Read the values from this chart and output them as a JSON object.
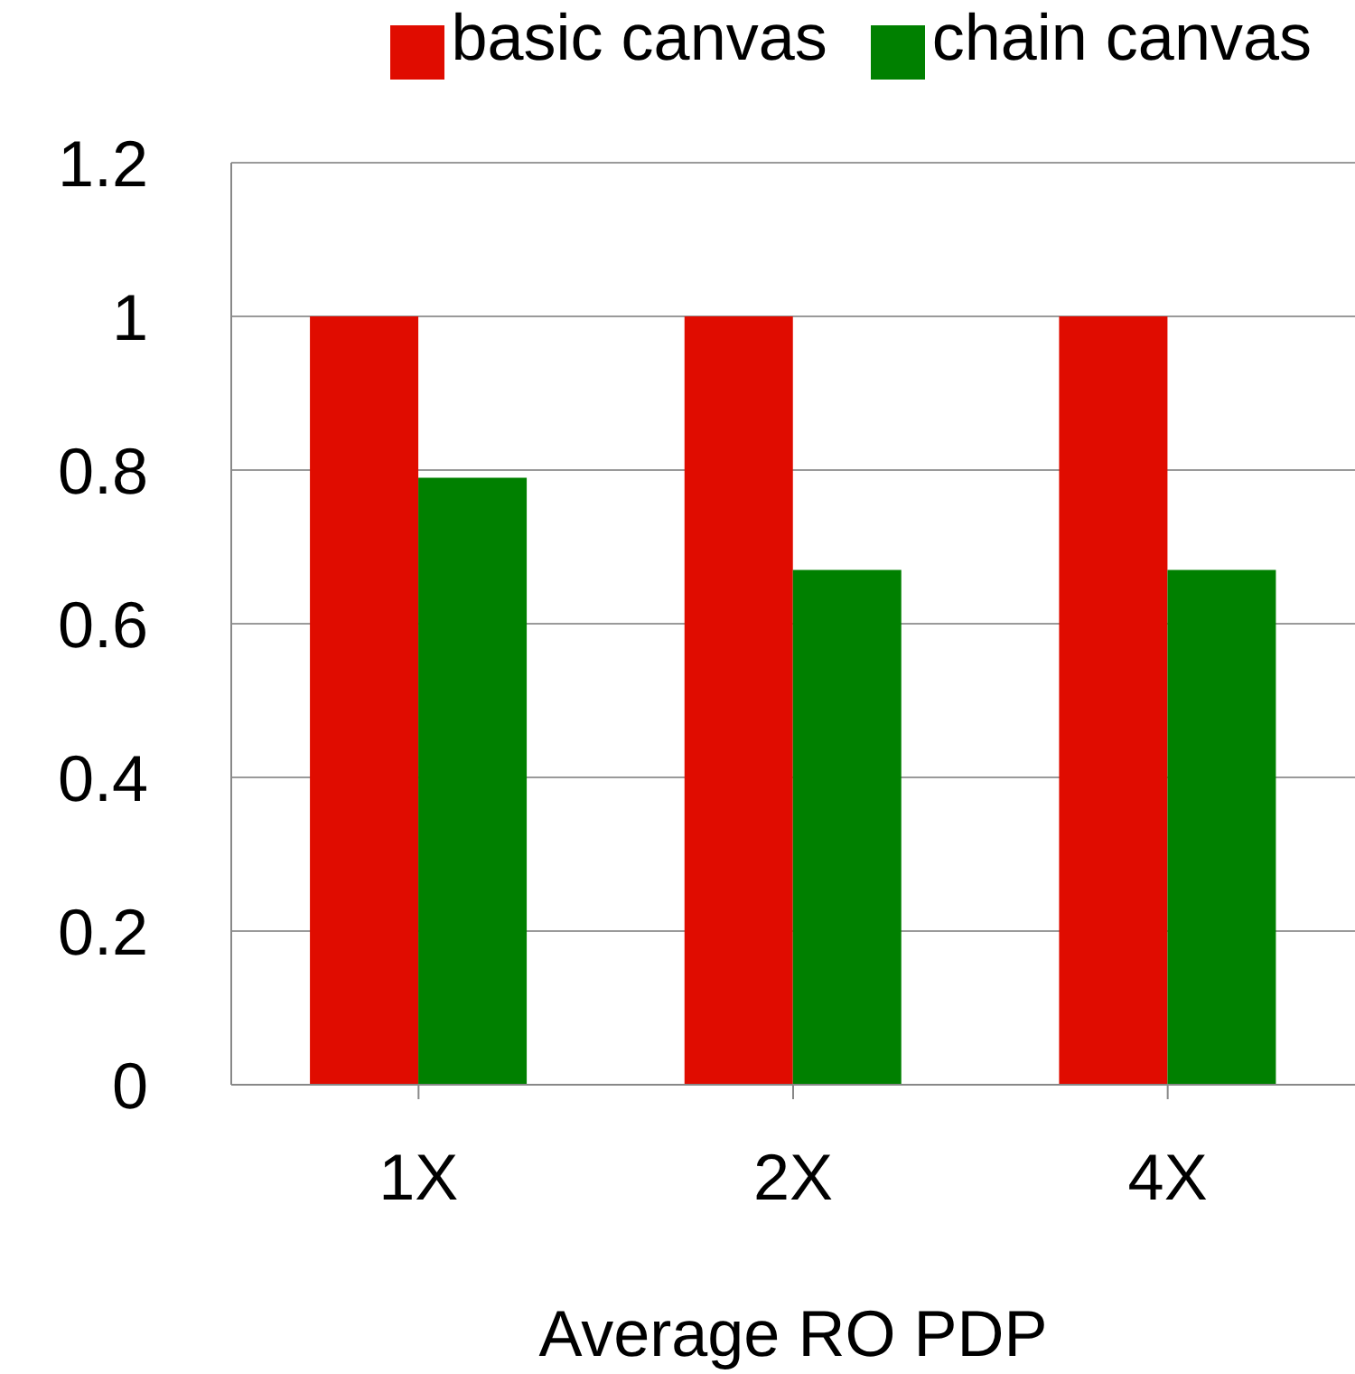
{
  "chart_data": {
    "type": "bar",
    "xlabel": "Average RO PDP",
    "categories": [
      "1X",
      "2X",
      "4X"
    ],
    "series": [
      {
        "name": "basic canvas",
        "color": "#e00c00",
        "values": [
          1,
          1,
          1
        ]
      },
      {
        "name": "chain canvas",
        "color": "#008000",
        "values": [
          0.79,
          0.67,
          0.67
        ]
      }
    ],
    "ylim": [
      0,
      1.2
    ],
    "yticks": [
      0,
      0.2,
      0.4,
      0.6,
      0.8,
      1,
      1.2
    ],
    "grid": "y",
    "legend": "top"
  }
}
